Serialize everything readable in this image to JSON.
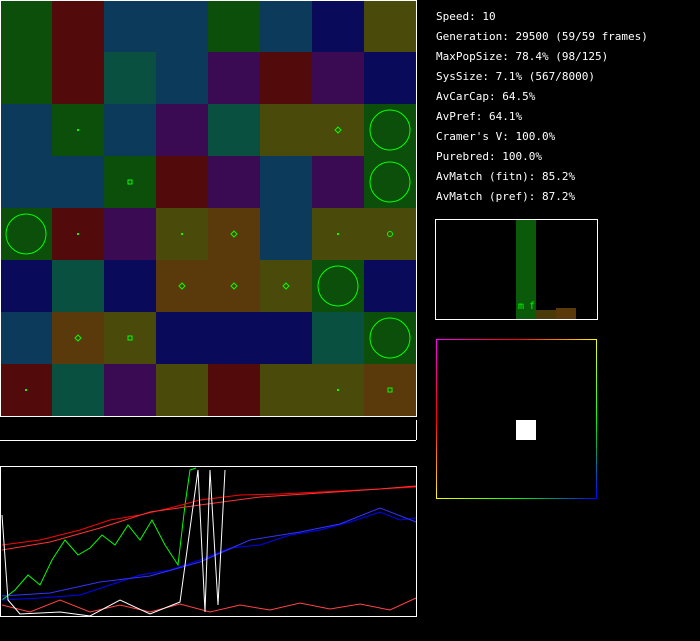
{
  "stats": [
    "Speed: 10",
    "Generation: 29500 (59/59 frames)",
    "MaxPopSize: 78.4% (98/125)",
    "SysSize: 7.1% (567/8000)",
    "AvCarCap: 64.5%",
    "AvPref: 64.1%",
    "Cramer's V: 100.0%",
    "Purebred: 100.0%",
    "AvMatch (fitn): 85.2%",
    "AvMatch (pref): 87.2%"
  ],
  "histogram": {
    "labels": [
      "m",
      "f"
    ]
  }
}
